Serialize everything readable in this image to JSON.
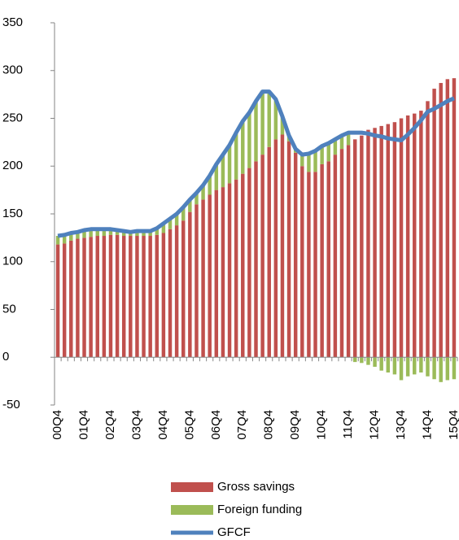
{
  "chart_data": {
    "type": "bar",
    "stacked": true,
    "categories": [
      "00Q4",
      null,
      null,
      null,
      "01Q4",
      null,
      null,
      null,
      "02Q4",
      null,
      null,
      null,
      "03Q4",
      null,
      null,
      null,
      "04Q4",
      null,
      null,
      null,
      "05Q4",
      null,
      null,
      null,
      "06Q4",
      null,
      null,
      null,
      "07Q4",
      null,
      null,
      null,
      "08Q4",
      null,
      null,
      null,
      "09Q4",
      null,
      null,
      null,
      "10Q4",
      null,
      null,
      null,
      "11Q4",
      null,
      null,
      null,
      "12Q4",
      null,
      null,
      null,
      "13Q4",
      null,
      null,
      null,
      "14Q4",
      null,
      null,
      null,
      "15Q4"
    ],
    "series": [
      {
        "name": "Gross savings",
        "color": "#c0504d",
        "type": "bar",
        "values": [
          118,
          119,
          122,
          124,
          125,
          126,
          127,
          127,
          128,
          128,
          127,
          127,
          127,
          127,
          127,
          128,
          130,
          134,
          138,
          143,
          152,
          160,
          165,
          170,
          175,
          178,
          182,
          186,
          192,
          198,
          205,
          212,
          220,
          228,
          233,
          226,
          214,
          200,
          194,
          194,
          202,
          205,
          212,
          218,
          222,
          228,
          232,
          238,
          240,
          242,
          244,
          246,
          250,
          253,
          255,
          258,
          268,
          281,
          287,
          291,
          292
        ]
      },
      {
        "name": "Foreign funding",
        "color": "#9bbb59",
        "type": "bar",
        "values": [
          9,
          9,
          8,
          7,
          8,
          8,
          7,
          7,
          6,
          5,
          5,
          4,
          5,
          5,
          5,
          7,
          10,
          11,
          12,
          14,
          13,
          12,
          15,
          20,
          27,
          34,
          40,
          49,
          55,
          58,
          63,
          66,
          58,
          42,
          19,
          6,
          4,
          12,
          19,
          22,
          19,
          19,
          16,
          14,
          13,
          -5,
          -6,
          -8,
          -10,
          -14,
          -16,
          -18,
          -24,
          -20,
          -18,
          -16,
          -20,
          -23,
          -26,
          -24,
          -23
        ]
      },
      {
        "name": "GFCF",
        "color": "#4f81bd",
        "type": "line",
        "values": [
          127,
          128,
          130,
          131,
          133,
          134,
          134,
          134,
          134,
          133,
          132,
          131,
          132,
          132,
          132,
          135,
          140,
          145,
          150,
          157,
          165,
          172,
          180,
          190,
          202,
          212,
          222,
          235,
          247,
          256,
          268,
          278,
          278,
          270,
          252,
          232,
          218,
          212,
          213,
          216,
          221,
          224,
          228,
          232,
          235,
          235,
          235,
          234,
          232,
          231,
          229,
          228,
          227,
          233,
          240,
          248,
          257,
          260,
          264,
          268,
          271
        ]
      }
    ],
    "ylim": [
      -50,
      350
    ],
    "yticks": [
      -50,
      0,
      50,
      100,
      150,
      200,
      250,
      300,
      350
    ]
  }
}
